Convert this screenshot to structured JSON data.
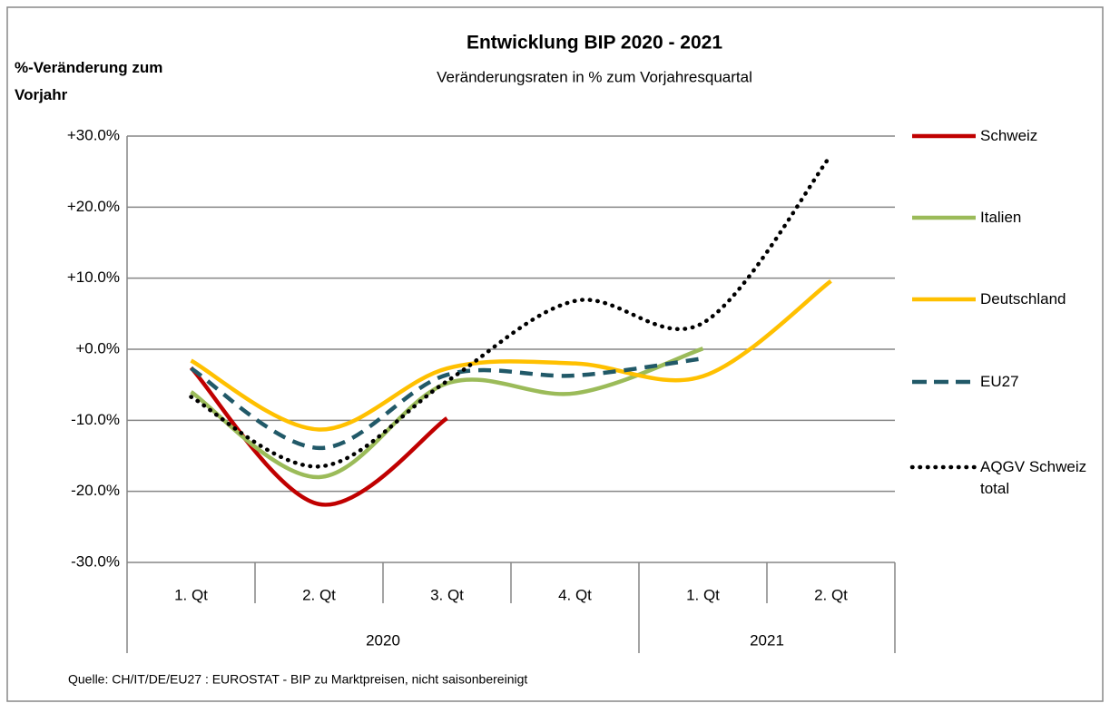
{
  "chart_data": {
    "type": "line",
    "title": "Entwicklung BIP 2020 - 2021",
    "subtitle": "Veränderungsraten in % zum Vorjahresquartal",
    "y_label": "%-Veränderung zum Vorjahr",
    "source": "Quelle: CH/IT/DE/EU27 : EUROSTAT - BIP zu Marktpreisen, nicht saisonbereinigt",
    "categories": [
      "1. Qt",
      "2. Qt",
      "3. Qt",
      "4. Qt",
      "1. Qt",
      "2. Qt"
    ],
    "category_groups": [
      "2020",
      "2020",
      "2020",
      "2020",
      "2021",
      "2021"
    ],
    "ylim": [
      -30,
      30
    ],
    "yticks": [
      {
        "value": -30,
        "label": "-30.0%"
      },
      {
        "value": -20,
        "label": "-20.0%"
      },
      {
        "value": -10,
        "label": "-10.0%"
      },
      {
        "value": 0,
        "label": "+0.0%"
      },
      {
        "value": 10,
        "label": "+10.0%"
      },
      {
        "value": 20,
        "label": "+20.0%"
      },
      {
        "value": 30,
        "label": "+30.0%"
      }
    ],
    "grid": true,
    "smooth": true,
    "legend": "right",
    "series": [
      {
        "name": "Schweiz",
        "color": "#c00000",
        "dash": "solid",
        "values": [
          -2.6,
          -21.8,
          -9.7,
          null,
          null,
          null
        ]
      },
      {
        "name": "Italien",
        "color": "#9bbb59",
        "dash": "solid",
        "values": [
          -6.0,
          -18.0,
          -4.8,
          -6.2,
          0.1,
          null
        ]
      },
      {
        "name": "Deutschland",
        "color": "#ffc000",
        "dash": "solid",
        "values": [
          -1.6,
          -11.3,
          -2.7,
          -2.0,
          -3.8,
          9.6
        ]
      },
      {
        "name": "EU27",
        "color": "#215968",
        "dash": "dashed",
        "values": [
          -2.7,
          -13.9,
          -3.6,
          -3.7,
          -1.3,
          null
        ]
      },
      {
        "name": "AQGV Schweiz total",
        "color": "#000000",
        "dash": "dotted",
        "values": [
          -6.7,
          -16.5,
          -4.5,
          6.8,
          3.7,
          27.3
        ]
      }
    ]
  }
}
